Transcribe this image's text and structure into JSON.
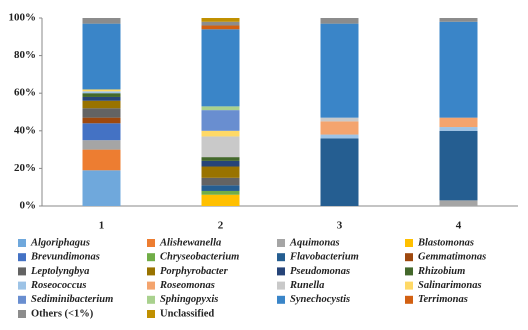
{
  "chart_data": {
    "type": "stacked-bar",
    "categories": [
      "1",
      "2",
      "3",
      "4"
    ],
    "ylim": [
      0,
      100
    ],
    "yticks": [
      {
        "value": 0,
        "label": "0%"
      },
      {
        "value": 20,
        "label": "20%"
      },
      {
        "value": 40,
        "label": "40%"
      },
      {
        "value": 60,
        "label": "60%"
      },
      {
        "value": 80,
        "label": "80%"
      },
      {
        "value": 100,
        "label": "100%"
      }
    ],
    "series": [
      {
        "name": "Algoriphagus",
        "color": "#6fa8dc",
        "values": [
          19,
          0,
          0,
          0
        ]
      },
      {
        "name": "Alishewanella",
        "color": "#ed7d31",
        "values": [
          11,
          0,
          0,
          0
        ]
      },
      {
        "name": "Aquimonas",
        "color": "#a5a5a5",
        "values": [
          5,
          0,
          0,
          3
        ]
      },
      {
        "name": "Blastomonas",
        "color": "#ffc000",
        "values": [
          0,
          6,
          0,
          0
        ]
      },
      {
        "name": "Brevundimonas",
        "color": "#4472c4",
        "values": [
          9,
          0,
          0,
          0
        ]
      },
      {
        "name": "Chryseobacterium",
        "color": "#70ad47",
        "values": [
          0,
          2,
          0,
          0
        ]
      },
      {
        "name": "Flavobacterium",
        "color": "#255e91",
        "values": [
          0,
          3,
          36,
          37
        ]
      },
      {
        "name": "Gemmatimonas",
        "color": "#9e480e",
        "values": [
          3,
          0,
          0,
          0
        ]
      },
      {
        "name": "Leptolyngbya",
        "color": "#636363",
        "values": [
          5,
          4,
          0,
          0
        ]
      },
      {
        "name": "Porphyrobacter",
        "color": "#997300",
        "values": [
          4,
          6,
          0,
          0
        ]
      },
      {
        "name": "Pseudomonas",
        "color": "#264478",
        "values": [
          2,
          3,
          0,
          0
        ]
      },
      {
        "name": "Rhizobium",
        "color": "#43682b",
        "values": [
          2,
          2,
          0,
          0
        ]
      },
      {
        "name": "Roseococcus",
        "color": "#9dc3e6",
        "values": [
          1,
          0,
          2,
          2
        ]
      },
      {
        "name": "Roseomonas",
        "color": "#f4a46e",
        "values": [
          0,
          0,
          7,
          5
        ]
      },
      {
        "name": "Runella",
        "color": "#c9c9c9",
        "values": [
          0,
          11,
          2,
          0
        ]
      },
      {
        "name": "Salinarimonas",
        "color": "#ffd966",
        "values": [
          1,
          3,
          0,
          0
        ]
      },
      {
        "name": "Sediminibacterium",
        "color": "#698ed0",
        "values": [
          0,
          11,
          0,
          0
        ]
      },
      {
        "name": "Sphingopyxis",
        "color": "#a9d18e",
        "values": [
          0,
          2,
          0,
          0
        ]
      },
      {
        "name": "Synechocystis",
        "color": "#3a85c8",
        "values": [
          35,
          41,
          50,
          51
        ]
      },
      {
        "name": "Terrimonas",
        "color": "#d26012",
        "values": [
          0,
          2,
          0,
          0
        ]
      },
      {
        "name": "Others (<1%)",
        "color": "#8c8c8c",
        "values": [
          3,
          2,
          3,
          2
        ]
      },
      {
        "name": "Unclassified",
        "color": "#c09000",
        "values": [
          0,
          2,
          0,
          0
        ]
      }
    ]
  }
}
